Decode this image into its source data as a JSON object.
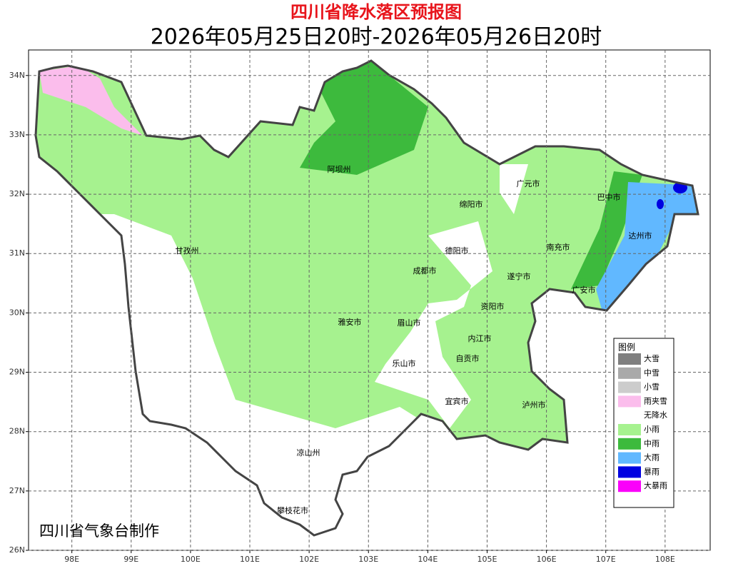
{
  "header": {
    "title": "四川省降水落区预报图",
    "subtitle": "2026年05月25日20时-2026年05月26日20时"
  },
  "map": {
    "xlim": [
      97.27,
      108.76
    ],
    "ylim": [
      26,
      34.43
    ],
    "xticks": [
      {
        "value": 98,
        "label": "98E"
      },
      {
        "value": 99,
        "label": "99E"
      },
      {
        "value": 100,
        "label": "100E"
      },
      {
        "value": 101,
        "label": "101E"
      },
      {
        "value": 102,
        "label": "102E"
      },
      {
        "value": 103,
        "label": "103E"
      },
      {
        "value": 104,
        "label": "104E"
      },
      {
        "value": 105,
        "label": "105E"
      },
      {
        "value": 106,
        "label": "106E"
      },
      {
        "value": 107,
        "label": "107E"
      },
      {
        "value": 108,
        "label": "108E"
      }
    ],
    "yticks": [
      {
        "value": 26,
        "label": "26N"
      },
      {
        "value": 27,
        "label": "27N"
      },
      {
        "value": 28,
        "label": "28N"
      },
      {
        "value": 29,
        "label": "29N"
      },
      {
        "value": 30,
        "label": "30N"
      },
      {
        "value": 31,
        "label": "31N"
      },
      {
        "value": 32,
        "label": "32N"
      },
      {
        "value": 33,
        "label": "33N"
      },
      {
        "value": 34,
        "label": "34N"
      }
    ],
    "grid": true,
    "cities": [
      "阿坝州",
      "绵阳市",
      "广元市",
      "巴中市",
      "达州市",
      "南充市",
      "德阳市",
      "甘孜州",
      "成都市",
      "遂宁市",
      "广安市",
      "资阳市",
      "雅安市",
      "眉山市",
      "内江市",
      "自贡市",
      "乐山市",
      "宜宾市",
      "泸州市",
      "凉山州",
      "攀枝花市"
    ]
  },
  "legend": {
    "title": "图例",
    "items": [
      {
        "label": "大雪",
        "color": "#7f7f7f"
      },
      {
        "label": "中雪",
        "color": "#a9a9a9"
      },
      {
        "label": "小雪",
        "color": "#cccccc"
      },
      {
        "label": "雨夹雪",
        "color": "#fbbdec"
      },
      {
        "label": "无降水",
        "color": "#ffffff"
      },
      {
        "label": "小雨",
        "color": "#a6f28f"
      },
      {
        "label": "中雨",
        "color": "#3dba3d"
      },
      {
        "label": "大雨",
        "color": "#61b8ff"
      },
      {
        "label": "暴雨",
        "color": "#0000e1"
      },
      {
        "label": "大暴雨",
        "color": "#fa00fa"
      }
    ]
  },
  "credit": "四川省气象台制作"
}
